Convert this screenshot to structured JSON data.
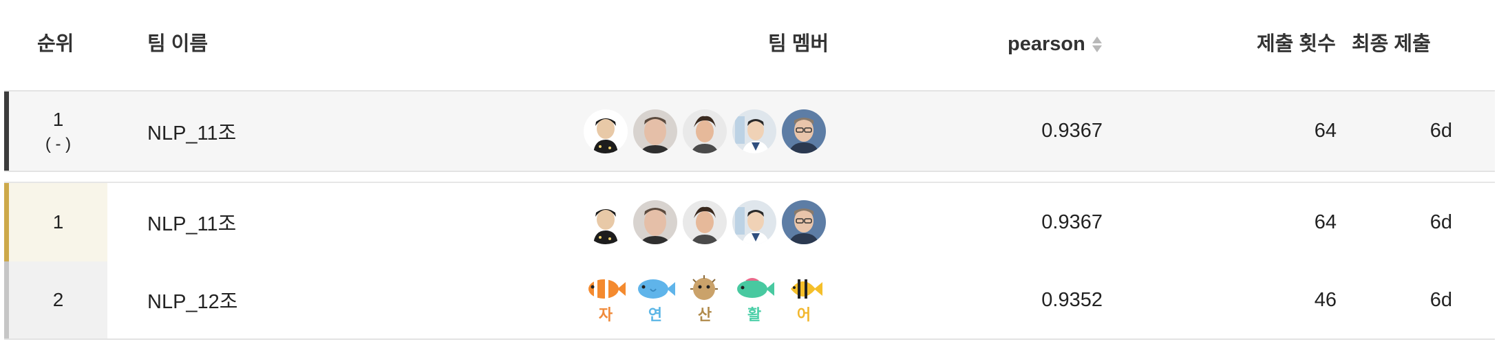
{
  "header": {
    "rank": "순위",
    "team": "팀 이름",
    "members": "팀 멤버",
    "score": "pearson",
    "submissions": "제출 횟수",
    "last": "최종 제출"
  },
  "my_team": {
    "rank": "1",
    "rank_change": "( - )",
    "team_name": "NLP_11조",
    "score": "0.9367",
    "submissions": "64",
    "last": "6d",
    "members": [
      {
        "icon": "avatar-person-1"
      },
      {
        "icon": "avatar-person-2"
      },
      {
        "icon": "avatar-person-3"
      },
      {
        "icon": "avatar-person-4"
      },
      {
        "icon": "avatar-person-5"
      }
    ]
  },
  "rows": [
    {
      "rank": "1",
      "team_name": "NLP_11조",
      "score": "0.9367",
      "submissions": "64",
      "last": "6d",
      "members": [
        {
          "icon": "avatar-person-1"
        },
        {
          "icon": "avatar-person-2"
        },
        {
          "icon": "avatar-person-3"
        },
        {
          "icon": "avatar-person-4"
        },
        {
          "icon": "avatar-person-5"
        }
      ]
    },
    {
      "rank": "2",
      "team_name": "NLP_12조",
      "score": "0.9352",
      "submissions": "46",
      "last": "6d",
      "members": [
        {
          "icon": "clownfish-icon",
          "label": "자",
          "color": "#f08a3a"
        },
        {
          "icon": "bluefish-icon",
          "label": "연",
          "color": "#5bb6e6"
        },
        {
          "icon": "pufferfish-icon",
          "label": "산",
          "color": "#b08a4a"
        },
        {
          "icon": "greenfish-icon",
          "label": "활",
          "color": "#4ccfa8"
        },
        {
          "icon": "stripedfish-icon",
          "label": "어",
          "color": "#f2b72e"
        }
      ]
    }
  ],
  "colors": {
    "first_place": "#cda94a",
    "my_team_bar": "#3c3c3c",
    "second_place": "#c6c6c6"
  }
}
